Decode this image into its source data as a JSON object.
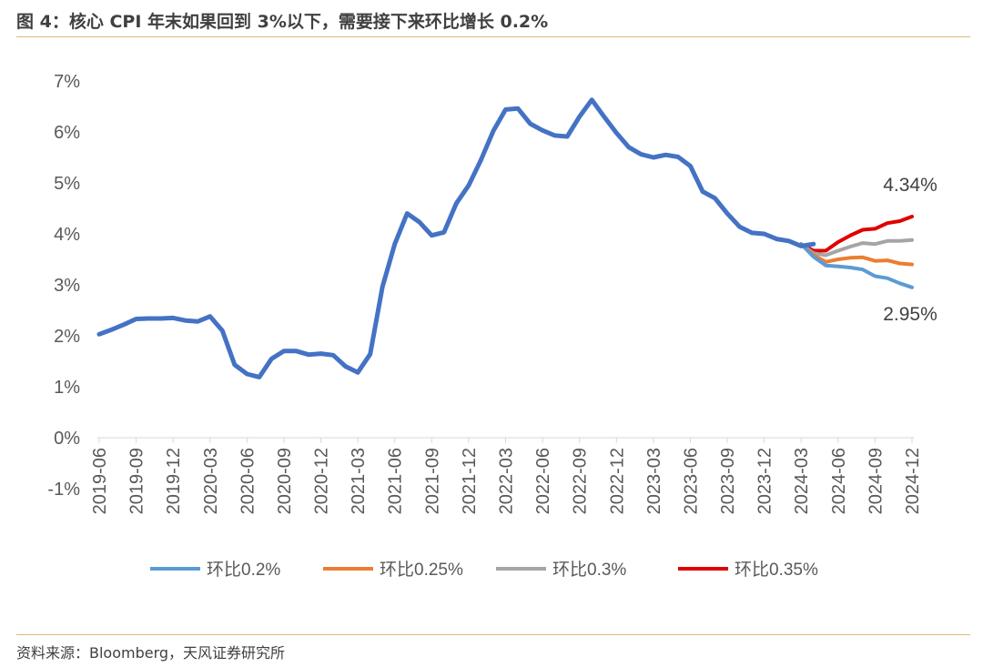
{
  "title": "图 4：核心 CPI 年末如果回到 3%以下，需要接下来环比增长 0.2%",
  "source": "资料来源：Bloomberg，天风证券研究所",
  "chart_data": {
    "type": "line",
    "title": "图 4：核心 CPI 年末如果回到 3%以下，需要接下来环比增长 0.2%",
    "xlabel": "",
    "ylabel": "",
    "ylim": [
      -1,
      7
    ],
    "yticks": [
      "-1%",
      "0%",
      "1%",
      "2%",
      "3%",
      "4%",
      "5%",
      "6%",
      "7%"
    ],
    "ytick_values": [
      -1,
      0,
      1,
      2,
      3,
      4,
      5,
      6,
      7
    ],
    "x_start": "2019-06",
    "x_end": "2024-12",
    "xticks": [
      "2019-06",
      "2019-09",
      "2019-12",
      "2020-03",
      "2020-06",
      "2020-09",
      "2020-12",
      "2021-03",
      "2021-06",
      "2021-09",
      "2021-12",
      "2022-03",
      "2022-06",
      "2022-09",
      "2022-12",
      "2023-03",
      "2023-06",
      "2023-09",
      "2023-12",
      "2024-03",
      "2024-06",
      "2024-09",
      "2024-12"
    ],
    "grid": false,
    "legend_position": "bottom",
    "history": {
      "start": "2019-06",
      "color": "#4472C4",
      "values": [
        2.03,
        2.12,
        2.22,
        2.33,
        2.34,
        2.34,
        2.35,
        2.3,
        2.28,
        2.38,
        2.1,
        1.43,
        1.25,
        1.19,
        1.55,
        1.7,
        1.7,
        1.63,
        1.65,
        1.62,
        1.4,
        1.28,
        1.64,
        2.96,
        3.8,
        4.4,
        4.23,
        3.97,
        4.03,
        4.6,
        4.95,
        5.45,
        6.02,
        6.44,
        6.46,
        6.16,
        6.03,
        5.93,
        5.91,
        6.3,
        6.63,
        6.3,
        5.98,
        5.7,
        5.56,
        5.5,
        5.55,
        5.51,
        5.33,
        4.83,
        4.7,
        4.4,
        4.14,
        4.02,
        4.0,
        3.9,
        3.86,
        3.76,
        3.8
      ]
    },
    "series": [
      {
        "name": "环比0.2%",
        "color": "#5B9BD5",
        "start": "2024-03",
        "values": [
          3.8,
          3.55,
          3.38,
          3.36,
          3.34,
          3.3,
          3.17,
          3.13,
          3.03,
          2.95
        ]
      },
      {
        "name": "环比0.25%",
        "color": "#ED7D31",
        "start": "2024-03",
        "values": [
          3.8,
          3.58,
          3.45,
          3.5,
          3.53,
          3.54,
          3.47,
          3.48,
          3.42,
          3.4
        ]
      },
      {
        "name": "环比0.3%",
        "color": "#A5A5A5",
        "start": "2024-03",
        "values": [
          3.8,
          3.62,
          3.58,
          3.67,
          3.75,
          3.82,
          3.8,
          3.86,
          3.86,
          3.88
        ]
      },
      {
        "name": "环比0.35%",
        "color": "#E00000",
        "start": "2024-03",
        "values": [
          3.8,
          3.67,
          3.67,
          3.84,
          3.97,
          4.08,
          4.1,
          4.21,
          4.25,
          4.34
        ]
      }
    ],
    "annotations": [
      {
        "text": "4.34%",
        "series": "环比0.35%",
        "at": "2024-12"
      },
      {
        "text": "2.95%",
        "series": "环比0.2%",
        "at": "2024-12"
      }
    ]
  }
}
